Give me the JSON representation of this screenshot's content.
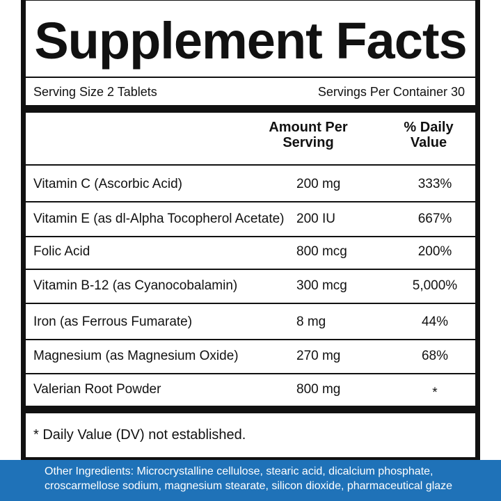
{
  "header": {
    "title": "Supplement Facts"
  },
  "serving": {
    "size": "Serving Size 2 Tablets",
    "per_container": "Servings Per Container 30"
  },
  "table": {
    "columns": [
      "Amount Per Serving",
      "% Daily Value"
    ],
    "rows": [
      [
        "Vitamin C (Ascorbic Acid)",
        "200 mg",
        "333%"
      ],
      [
        "Vitamin E (as dl-Alpha Tocopherol Acetate)",
        "200 IU",
        "667%"
      ],
      [
        "Folic Acid",
        "800 mcg",
        "200%"
      ],
      [
        "Vitamin B-12 (as Cyanocobalamin)",
        "300 mcg",
        "5,000%"
      ],
      [
        "Iron (as Ferrous Fumarate)",
        "8 mg",
        "44%"
      ],
      [
        "Magnesium (as Magnesium Oxide)",
        "270 mg",
        "68%"
      ],
      [
        "Valerian Root Powder",
        "800 mg",
        "*"
      ]
    ]
  },
  "footnote": "* Daily Value (DV) not established.",
  "other_ingredients": [
    "Other Ingredients: Microcrystalline cellulose, stearic acid, dicalcium phosphate,",
    "croscarmellose sodium, magnesium stearate, silicon dioxide,  pharmaceutical glaze"
  ]
}
